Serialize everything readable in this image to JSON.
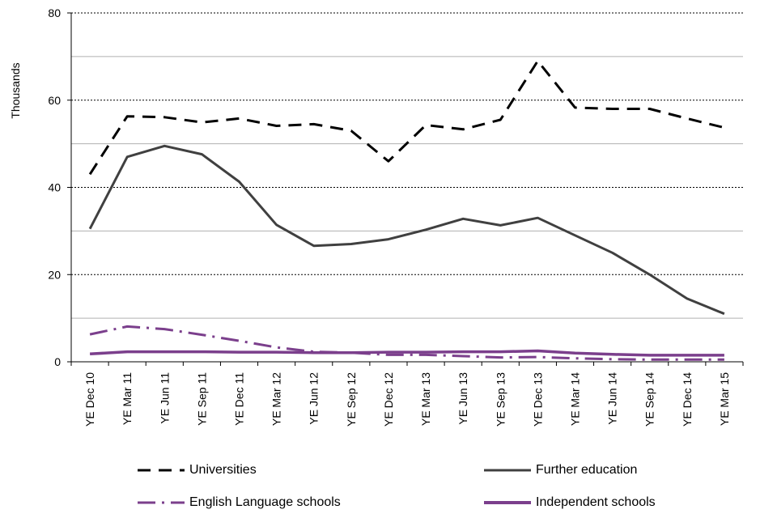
{
  "chart_data": {
    "type": "line",
    "title": "",
    "xlabel": "",
    "ylabel": "Thousands",
    "ylim": [
      0,
      80
    ],
    "yticks": [
      0,
      20,
      40,
      60,
      80
    ],
    "gridlines": [
      10,
      20,
      30,
      40,
      50,
      60,
      70,
      80
    ],
    "legend_position": "bottom",
    "categories": [
      "YE Dec 10",
      "YE Mar 11",
      "YE Jun 11",
      "YE Sep 11",
      "YE Dec 11",
      "YE Mar 12",
      "YE Jun 12",
      "YE Sep 12",
      "YE Dec 12",
      "YE Mar 13",
      "YE Jun 13",
      "YE Sep 13",
      "YE Dec 13",
      "YE Mar 14",
      "YE Jun 14",
      "YE Sep 14",
      "YE Dec 14",
      "YE Mar 15"
    ],
    "series": [
      {
        "name": "Universities",
        "color": "#000000",
        "style": "dash",
        "values": [
          43,
          56.3,
          56.1,
          54.9,
          55.8,
          54.1,
          54.5,
          53,
          46,
          54.3,
          53.3,
          55.5,
          69,
          58.3,
          58,
          58,
          55.8,
          53.7
        ]
      },
      {
        "name": "Further education",
        "color": "#404040",
        "style": "solid",
        "values": [
          30.5,
          47,
          49.5,
          47.6,
          41.3,
          31.4,
          26.6,
          27,
          28.1,
          30.3,
          32.8,
          31.3,
          33,
          29,
          25,
          20,
          14.5,
          11
        ]
      },
      {
        "name": "English Language schools",
        "color": "#7b3f8c",
        "style": "dashdot",
        "values": [
          6.3,
          8.1,
          7.5,
          6.2,
          4.8,
          3.3,
          2.3,
          2.1,
          1.6,
          1.6,
          1.3,
          1,
          1.1,
          0.8,
          0.6,
          0.5,
          0.5,
          0.5
        ]
      },
      {
        "name": "Independent schools",
        "color": "#7b3f8c",
        "style": "solid",
        "values": [
          1.8,
          2.3,
          2.3,
          2.3,
          2.2,
          2.2,
          2.1,
          2.1,
          2.2,
          2.2,
          2.3,
          2.3,
          2.5,
          2,
          1.7,
          1.5,
          1.5,
          1.5
        ]
      }
    ]
  },
  "legend": {
    "universities": "Universities",
    "further_education": "Further education",
    "english_language_schools": "English Language schools",
    "independent_schools": "Independent schools"
  }
}
